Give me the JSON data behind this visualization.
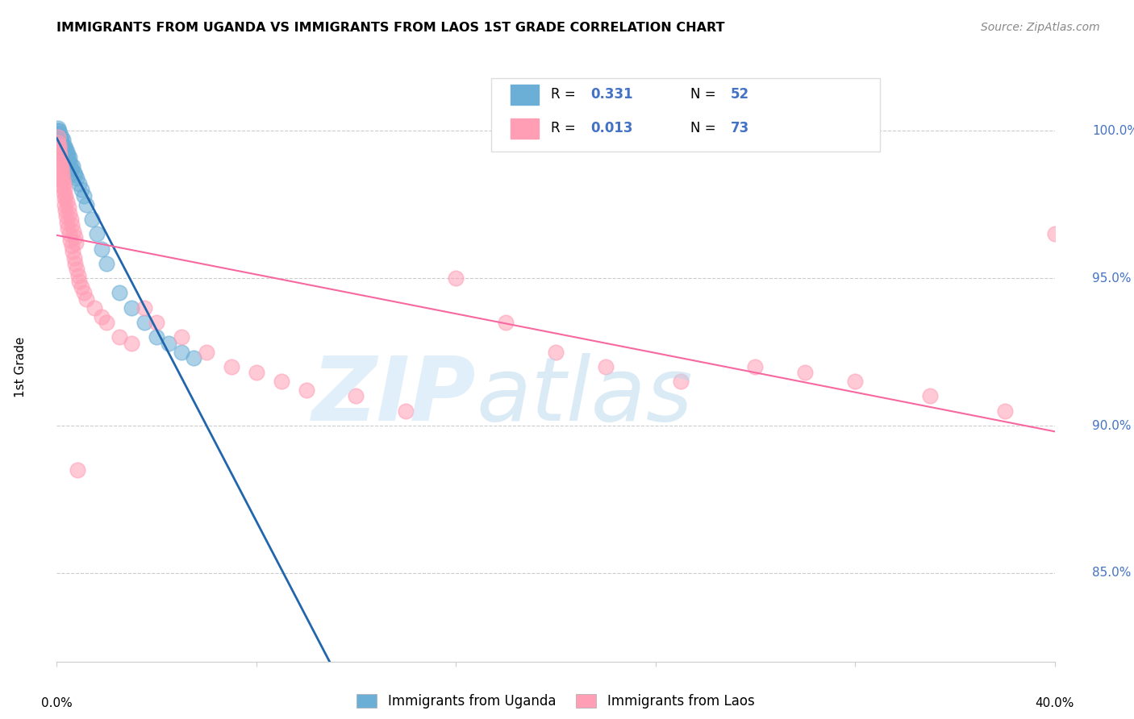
{
  "title": "IMMIGRANTS FROM UGANDA VS IMMIGRANTS FROM LAOS 1ST GRADE CORRELATION CHART",
  "source": "Source: ZipAtlas.com",
  "ylabel": "1st Grade",
  "y_ticks": [
    85.0,
    90.0,
    95.0,
    100.0
  ],
  "y_tick_labels": [
    "85.0%",
    "90.0%",
    "95.0%",
    "100.0%"
  ],
  "xlim": [
    0.0,
    40.0
  ],
  "ylim": [
    82.0,
    102.0
  ],
  "legend_label_uganda": "Immigrants from Uganda",
  "legend_label_laos": "Immigrants from Laos",
  "color_uganda": "#6baed6",
  "color_laos": "#ff9eb5",
  "trendline_color_uganda": "#2166ac",
  "trendline_color_laos": "#f768a1",
  "uganda_x": [
    0.05,
    0.08,
    0.1,
    0.12,
    0.15,
    0.18,
    0.2,
    0.22,
    0.25,
    0.28,
    0.3,
    0.32,
    0.35,
    0.38,
    0.4,
    0.42,
    0.45,
    0.48,
    0.5,
    0.55,
    0.6,
    0.65,
    0.7,
    0.75,
    0.8,
    0.9,
    1.0,
    1.1,
    1.2,
    1.4,
    1.6,
    1.8,
    2.0,
    2.5,
    3.0,
    3.5,
    4.0,
    4.5,
    5.0,
    5.5,
    0.06,
    0.09,
    0.11,
    0.14,
    0.17,
    0.21,
    0.24,
    0.27,
    0.31,
    0.36,
    0.41,
    0.52
  ],
  "uganda_y": [
    100.0,
    99.8,
    100.0,
    99.9,
    99.7,
    99.8,
    99.6,
    99.5,
    99.7,
    99.4,
    99.5,
    99.3,
    99.4,
    99.2,
    99.3,
    99.1,
    99.2,
    99.0,
    99.1,
    98.9,
    98.7,
    98.8,
    98.6,
    98.5,
    98.4,
    98.2,
    98.0,
    97.8,
    97.5,
    97.0,
    96.5,
    96.0,
    95.5,
    94.5,
    94.0,
    93.5,
    93.0,
    92.8,
    92.5,
    92.3,
    100.1,
    99.9,
    99.8,
    99.6,
    99.5,
    99.4,
    99.3,
    99.2,
    99.1,
    99.0,
    98.9,
    98.7
  ],
  "laos_x": [
    0.05,
    0.08,
    0.1,
    0.12,
    0.15,
    0.18,
    0.2,
    0.22,
    0.25,
    0.28,
    0.3,
    0.32,
    0.35,
    0.38,
    0.4,
    0.45,
    0.5,
    0.55,
    0.6,
    0.65,
    0.7,
    0.75,
    0.8,
    0.85,
    0.9,
    1.0,
    1.1,
    1.2,
    1.5,
    1.8,
    2.0,
    2.5,
    3.0,
    3.5,
    4.0,
    5.0,
    6.0,
    7.0,
    8.0,
    9.0,
    10.0,
    12.0,
    14.0,
    16.0,
    18.0,
    20.0,
    22.0,
    25.0,
    28.0,
    30.0,
    32.0,
    35.0,
    38.0,
    40.0,
    0.06,
    0.09,
    0.11,
    0.14,
    0.17,
    0.21,
    0.24,
    0.27,
    0.31,
    0.36,
    0.42,
    0.48,
    0.52,
    0.58,
    0.62,
    0.68,
    0.72,
    0.78,
    0.82
  ],
  "laos_y": [
    99.8,
    99.5,
    99.3,
    99.1,
    98.9,
    98.7,
    98.5,
    98.3,
    98.1,
    97.9,
    97.7,
    97.5,
    97.3,
    97.1,
    96.9,
    96.7,
    96.5,
    96.3,
    96.1,
    95.9,
    95.7,
    95.5,
    95.3,
    95.1,
    94.9,
    94.7,
    94.5,
    94.3,
    94.0,
    93.7,
    93.5,
    93.0,
    92.8,
    94.0,
    93.5,
    93.0,
    92.5,
    92.0,
    91.8,
    91.5,
    91.2,
    91.0,
    90.5,
    95.0,
    93.5,
    92.5,
    92.0,
    91.5,
    92.0,
    91.8,
    91.5,
    91.0,
    90.5,
    96.5,
    99.6,
    99.4,
    99.2,
    99.0,
    98.8,
    98.6,
    98.4,
    98.2,
    98.0,
    97.8,
    97.6,
    97.4,
    97.2,
    97.0,
    96.8,
    96.6,
    96.4,
    96.2,
    88.5
  ]
}
